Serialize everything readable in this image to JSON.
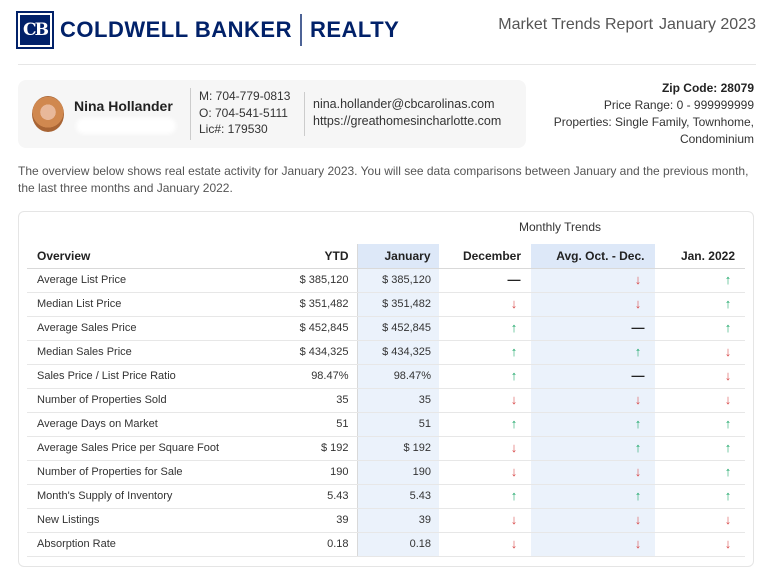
{
  "brand": {
    "logo_mark": "CB",
    "name_left": "COLDWELL BANKER",
    "name_right": "REALTY",
    "color": "#012169"
  },
  "report": {
    "title": "Market Trends Report",
    "month": "January 2023"
  },
  "agent": {
    "name": "Nina Hollander",
    "mobile": "M: 704-779-0813",
    "office": "O: 704-541-5111",
    "license": "Lic#: 179530",
    "email": "nina.hollander@cbcarolinas.com",
    "website": "https://greathomesincharlotte.com"
  },
  "search": {
    "zip": "Zip Code: 28079",
    "price_range": "Price Range: 0 - 999999999",
    "properties_line1": "Properties: Single Family, Townhome,",
    "properties_line2": "Condominium"
  },
  "overview_text": "The overview below shows real estate activity for January 2023. You will see data comparisons between January and the previous month, the last three months and January 2022.",
  "table": {
    "group_header": "Monthly Trends",
    "headers": {
      "overview": "Overview",
      "ytd": "YTD",
      "january": "January",
      "december": "December",
      "avg": "Avg. Oct. - Dec.",
      "jan2022": "Jan. 2022"
    },
    "rows": [
      {
        "label": "Average List Price",
        "ytd": "$ 385,120",
        "jan": "$ 385,120",
        "dec": "flat",
        "avg": "down",
        "jan22": "up"
      },
      {
        "label": "Median List Price",
        "ytd": "$ 351,482",
        "jan": "$ 351,482",
        "dec": "down",
        "avg": "down",
        "jan22": "up"
      },
      {
        "label": "Average Sales Price",
        "ytd": "$ 452,845",
        "jan": "$ 452,845",
        "dec": "up",
        "avg": "flat",
        "jan22": "up"
      },
      {
        "label": "Median Sales Price",
        "ytd": "$ 434,325",
        "jan": "$ 434,325",
        "dec": "up",
        "avg": "up",
        "jan22": "down"
      },
      {
        "label": "Sales Price / List Price Ratio",
        "ytd": "98.47%",
        "jan": "98.47%",
        "dec": "up",
        "avg": "flat",
        "jan22": "down"
      },
      {
        "label": "Number of Properties Sold",
        "ytd": "35",
        "jan": "35",
        "dec": "down",
        "avg": "down",
        "jan22": "down"
      },
      {
        "label": "Average Days on Market",
        "ytd": "51",
        "jan": "51",
        "dec": "up",
        "avg": "up",
        "jan22": "up"
      },
      {
        "label": "Average Sales Price per Square Foot",
        "ytd": "$ 192",
        "jan": "$ 192",
        "dec": "down",
        "avg": "up",
        "jan22": "up"
      },
      {
        "label": "Number of Properties for Sale",
        "ytd": "190",
        "jan": "190",
        "dec": "down",
        "avg": "down",
        "jan22": "up"
      },
      {
        "label": "Month's Supply of Inventory",
        "ytd": "5.43",
        "jan": "5.43",
        "dec": "up",
        "avg": "up",
        "jan22": "up"
      },
      {
        "label": "New Listings",
        "ytd": "39",
        "jan": "39",
        "dec": "down",
        "avg": "down",
        "jan22": "down"
      },
      {
        "label": "Absorption Rate",
        "ytd": "0.18",
        "jan": "0.18",
        "dec": "down",
        "avg": "down",
        "jan22": "down"
      }
    ]
  },
  "colors": {
    "up": "#1ea86a",
    "down": "#d84a4a",
    "flat": "#222222",
    "highlight": "#ebf2fb"
  }
}
